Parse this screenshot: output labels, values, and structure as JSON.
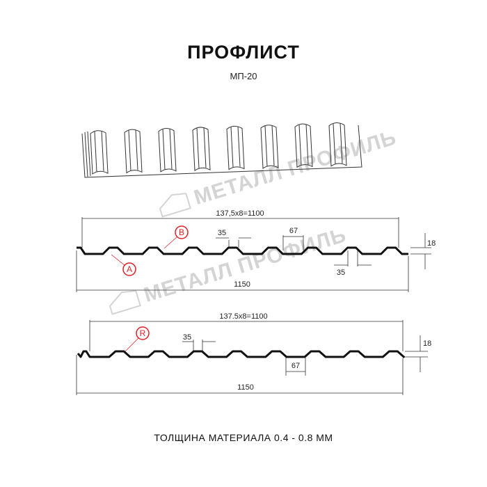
{
  "header": {
    "title": "ПРОФЛИСТ",
    "subtitle": "МП-20"
  },
  "watermark": {
    "text": "МЕТАЛЛ ПРОФИЛЬ"
  },
  "profile_a": {
    "pitch_label": "137,5x8=1100",
    "width_label": "1150",
    "rib_top_label": "35",
    "rib_bottom_label": "35",
    "gap_label": "67",
    "height_label": "18",
    "markers": [
      "A",
      "B"
    ]
  },
  "profile_r": {
    "pitch_label": "137.5x8=1100",
    "width_label": "1150",
    "rib_top_label": "35",
    "gap_label": "67",
    "height_label": "18",
    "markers": [
      "R"
    ]
  },
  "footer": {
    "thickness": "ТОЛЩИНА МАТЕРИАЛА 0.4 - 0.8 ММ"
  },
  "colors": {
    "marker": "#e31e24",
    "line": "#111111",
    "watermark": "#d4d4d4"
  }
}
